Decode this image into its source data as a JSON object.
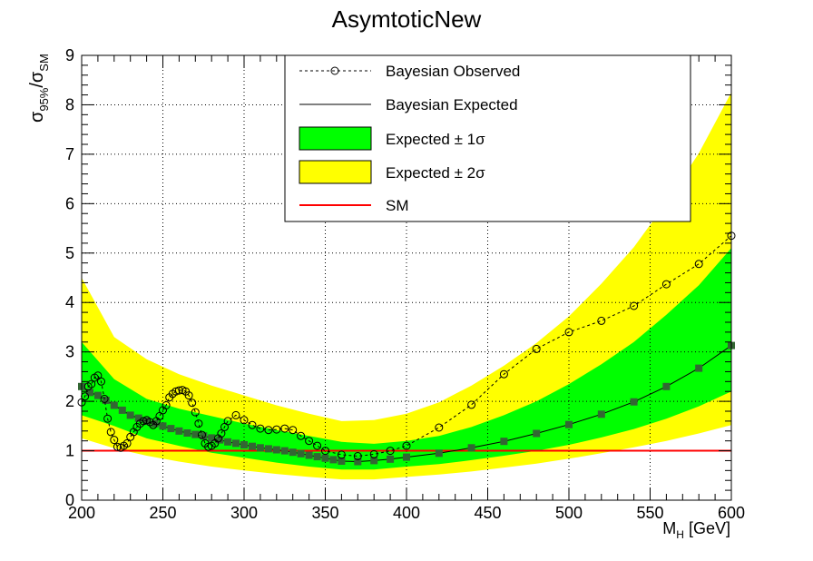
{
  "chart_data": {
    "type": "line",
    "title": "AsymtoticNew",
    "xlabel_main": "M",
    "xlabel_sub": "H",
    "xlabel_unit": " [GeV]",
    "ylabel_sigma1": "σ",
    "ylabel_sub1": "95%",
    "ylabel_slash": "/",
    "ylabel_sigma2": "σ",
    "ylabel_sub2": "SM",
    "xlim": [
      200,
      600
    ],
    "ylim": [
      0,
      9
    ],
    "x_ticks": [
      "200",
      "250",
      "300",
      "350",
      "400",
      "450",
      "500",
      "550",
      "600"
    ],
    "y_ticks": [
      "0",
      "1",
      "2",
      "3",
      "4",
      "5",
      "6",
      "7",
      "8",
      "9"
    ],
    "grid": true,
    "legend_position": "top-center",
    "legend": [
      {
        "label": "Bayesian Observed"
      },
      {
        "label": "Bayesian Expected"
      },
      {
        "label": "Expected ± 1σ"
      },
      {
        "label": "Expected ± 2σ"
      },
      {
        "label": "SM"
      }
    ],
    "colors": {
      "band_1sigma": "#00ff00",
      "band_2sigma": "#ffff00",
      "sm_line": "#ff0000",
      "expected_marker": "#336633",
      "observed": "#000000"
    },
    "series": [
      {
        "name": "Bayesian Observed",
        "x": [
          200,
          202,
          204,
          206,
          208,
          210,
          212,
          214,
          216,
          218,
          220,
          222,
          224,
          226,
          228,
          230,
          232,
          234,
          236,
          238,
          240,
          242,
          244,
          246,
          248,
          250,
          252,
          254,
          256,
          258,
          260,
          262,
          264,
          266,
          268,
          270,
          272,
          274,
          276,
          278,
          280,
          282,
          284,
          286,
          288,
          290,
          295,
          300,
          305,
          310,
          315,
          320,
          325,
          330,
          335,
          340,
          345,
          350,
          360,
          370,
          380,
          390,
          400,
          420,
          440,
          460,
          480,
          500,
          520,
          540,
          560,
          580,
          600
        ],
        "y": [
          1.98,
          2.1,
          2.3,
          2.35,
          2.48,
          2.52,
          2.4,
          2.05,
          1.65,
          1.38,
          1.22,
          1.08,
          1.06,
          1.1,
          1.15,
          1.28,
          1.38,
          1.48,
          1.55,
          1.6,
          1.62,
          1.58,
          1.52,
          1.6,
          1.7,
          1.82,
          1.92,
          2.08,
          2.15,
          2.2,
          2.22,
          2.23,
          2.2,
          2.12,
          1.97,
          1.78,
          1.55,
          1.32,
          1.15,
          1.08,
          1.1,
          1.15,
          1.25,
          1.35,
          1.48,
          1.6,
          1.72,
          1.62,
          1.52,
          1.45,
          1.42,
          1.43,
          1.45,
          1.42,
          1.3,
          1.2,
          1.1,
          1.0,
          0.92,
          0.89,
          0.93,
          1.0,
          1.1,
          1.47,
          1.93,
          2.55,
          3.06,
          3.4,
          3.63,
          3.93,
          4.37,
          4.78,
          5.35
        ]
      },
      {
        "name": "Bayesian Expected",
        "x": [
          200,
          205,
          210,
          215,
          220,
          225,
          230,
          235,
          240,
          245,
          250,
          255,
          260,
          265,
          270,
          275,
          280,
          285,
          290,
          295,
          300,
          305,
          310,
          315,
          320,
          325,
          330,
          335,
          340,
          345,
          350,
          355,
          360,
          370,
          380,
          390,
          400,
          420,
          440,
          460,
          480,
          500,
          520,
          540,
          560,
          580,
          600
        ],
        "y": [
          2.3,
          2.18,
          2.12,
          2.02,
          1.92,
          1.82,
          1.72,
          1.66,
          1.6,
          1.55,
          1.5,
          1.45,
          1.4,
          1.36,
          1.33,
          1.3,
          1.26,
          1.22,
          1.18,
          1.15,
          1.12,
          1.09,
          1.06,
          1.04,
          1.02,
          1.0,
          0.97,
          0.94,
          0.91,
          0.88,
          0.85,
          0.82,
          0.79,
          0.78,
          0.8,
          0.83,
          0.87,
          0.95,
          1.06,
          1.19,
          1.35,
          1.53,
          1.74,
          1.99,
          2.3,
          2.67,
          3.13
        ]
      },
      {
        "name": "Expected ± 1σ",
        "x": [
          200,
          220,
          240,
          260,
          280,
          300,
          320,
          340,
          360,
          380,
          400,
          420,
          440,
          460,
          480,
          500,
          520,
          540,
          560,
          580,
          600
        ],
        "low": [
          1.72,
          1.5,
          1.25,
          1.1,
          0.96,
          0.86,
          0.76,
          0.68,
          0.62,
          0.62,
          0.68,
          0.73,
          0.81,
          0.9,
          1.0,
          1.12,
          1.27,
          1.44,
          1.65,
          1.9,
          2.2
        ],
        "high": [
          3.2,
          2.45,
          2.05,
          1.85,
          1.7,
          1.55,
          1.42,
          1.3,
          1.18,
          1.14,
          1.2,
          1.3,
          1.48,
          1.72,
          2.0,
          2.35,
          2.75,
          3.2,
          3.75,
          4.35,
          5.1
        ]
      },
      {
        "name": "Expected ± 2σ",
        "x": [
          200,
          220,
          240,
          260,
          280,
          300,
          320,
          340,
          360,
          380,
          400,
          420,
          440,
          460,
          480,
          500,
          520,
          540,
          560,
          580,
          600
        ],
        "low": [
          1.25,
          1.05,
          0.9,
          0.78,
          0.68,
          0.6,
          0.53,
          0.47,
          0.42,
          0.42,
          0.47,
          0.52,
          0.58,
          0.66,
          0.74,
          0.84,
          0.95,
          1.07,
          1.2,
          1.35,
          1.52
        ],
        "high": [
          4.5,
          3.3,
          2.85,
          2.55,
          2.32,
          2.12,
          1.92,
          1.75,
          1.6,
          1.62,
          1.75,
          1.98,
          2.32,
          2.72,
          3.18,
          3.72,
          4.38,
          5.12,
          6.02,
          7.02,
          8.25
        ]
      },
      {
        "name": "SM",
        "x": [
          200,
          600
        ],
        "y": [
          1,
          1
        ]
      }
    ]
  }
}
